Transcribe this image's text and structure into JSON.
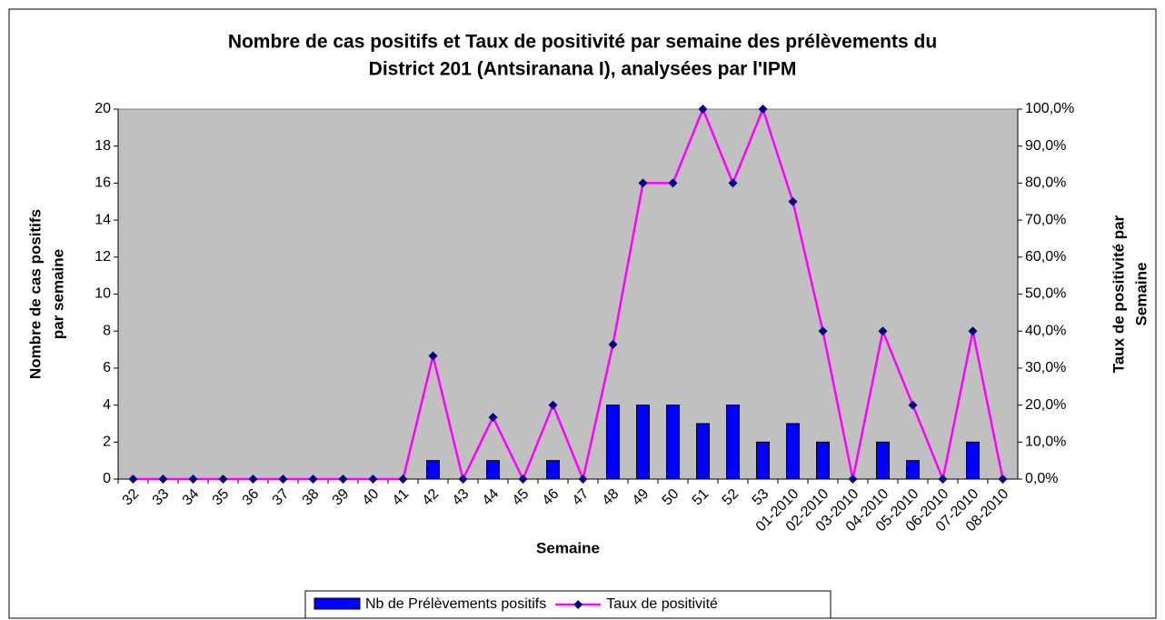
{
  "chart_data": {
    "type": "bar-line",
    "title": [
      "Nombre de cas positifs et Taux de positivité par semaine des prélèvements du",
      "District 201 (Antsiranana I), analysées par l'IPM"
    ],
    "xlabel": "Semaine",
    "ylabel": [
      "Nombre de cas positifs",
      "par semaine"
    ],
    "y2label": [
      "Taux de positivité par",
      "Semaine"
    ],
    "categories": [
      "32",
      "33",
      "34",
      "35",
      "36",
      "37",
      "38",
      "39",
      "40",
      "41",
      "42",
      "43",
      "44",
      "45",
      "46",
      "47",
      "48",
      "49",
      "50",
      "51",
      "52",
      "53",
      "01-2010",
      "02-2010",
      "03-2010",
      "04-2010",
      "05-2010",
      "06-2010",
      "07-2010",
      "08-2010"
    ],
    "series": [
      {
        "name": "Nb de Prélèvements positifs",
        "type": "bar",
        "color": "#0000ff",
        "values": [
          0,
          0,
          0,
          0,
          0,
          0,
          0,
          0,
          0,
          0,
          1,
          0,
          1,
          0,
          1,
          0,
          4,
          4,
          4,
          3,
          4,
          2,
          3,
          2,
          0,
          2,
          1,
          0,
          2,
          0
        ]
      },
      {
        "name": "Taux de positivité",
        "type": "line",
        "axis": "y2",
        "color": "#ff00ff",
        "marker_color": "#000080",
        "values": [
          0,
          0,
          0,
          0,
          0,
          0,
          0,
          0,
          0,
          0,
          33.3,
          0,
          16.7,
          0,
          20,
          0,
          36.4,
          80,
          80,
          100,
          80,
          100,
          75,
          40,
          0,
          40,
          20,
          0,
          40,
          0
        ]
      }
    ],
    "ylim": [
      0,
      20
    ],
    "yticks": [
      0,
      2,
      4,
      6,
      8,
      10,
      12,
      14,
      16,
      18,
      20
    ],
    "y2lim": [
      0,
      100
    ],
    "y2ticks": [
      {
        "value": 0,
        "label": "0,0%"
      },
      {
        "value": 10,
        "label": "10,0%"
      },
      {
        "value": 20,
        "label": "20,0%"
      },
      {
        "value": 30,
        "label": "30,0%"
      },
      {
        "value": 40,
        "label": "40,0%"
      },
      {
        "value": 50,
        "label": "50,0%"
      },
      {
        "value": 60,
        "label": "60,0%"
      },
      {
        "value": 70,
        "label": "70,0%"
      },
      {
        "value": 80,
        "label": "80,0%"
      },
      {
        "value": 90,
        "label": "90,0%"
      },
      {
        "value": 100,
        "label": "100,0%"
      }
    ],
    "plot_color": "#c0c0c0",
    "legend": "bottom"
  }
}
